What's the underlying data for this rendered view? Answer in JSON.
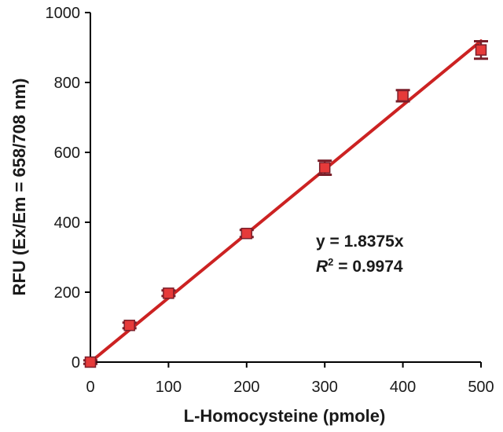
{
  "chart_data": {
    "type": "scatter",
    "title": "",
    "xlabel": "L-Homocysteine (pmole)",
    "ylabel": "RFU (Ex/Em = 658/708 nm)",
    "xlim": [
      0,
      500
    ],
    "ylim": [
      0,
      1000
    ],
    "xticks": [
      0,
      100,
      200,
      300,
      400,
      500
    ],
    "yticks": [
      0,
      200,
      400,
      600,
      800,
      1000
    ],
    "grid": false,
    "series": [
      {
        "points": [
          {
            "x": 0,
            "y": 0,
            "err": 5
          },
          {
            "x": 50,
            "y": 105,
            "err": 8
          },
          {
            "x": 100,
            "y": 197,
            "err": 8
          },
          {
            "x": 200,
            "y": 368,
            "err": 10
          },
          {
            "x": 300,
            "y": 556,
            "err": 20
          },
          {
            "x": 400,
            "y": 762,
            "err": 16
          },
          {
            "x": 500,
            "y": 893,
            "err": 25
          }
        ],
        "color": "#d42a2a",
        "marker_fill": "#e63a3a",
        "errorbar_color": "#7a1f2a"
      }
    ],
    "fit": {
      "slope": 1.8375,
      "color": "#cc2222"
    },
    "annotations": {
      "equation": "y = 1.8375x",
      "r2_symbol": "R",
      "r2_sup": "2",
      "r2_value": " = 0.9974"
    }
  }
}
